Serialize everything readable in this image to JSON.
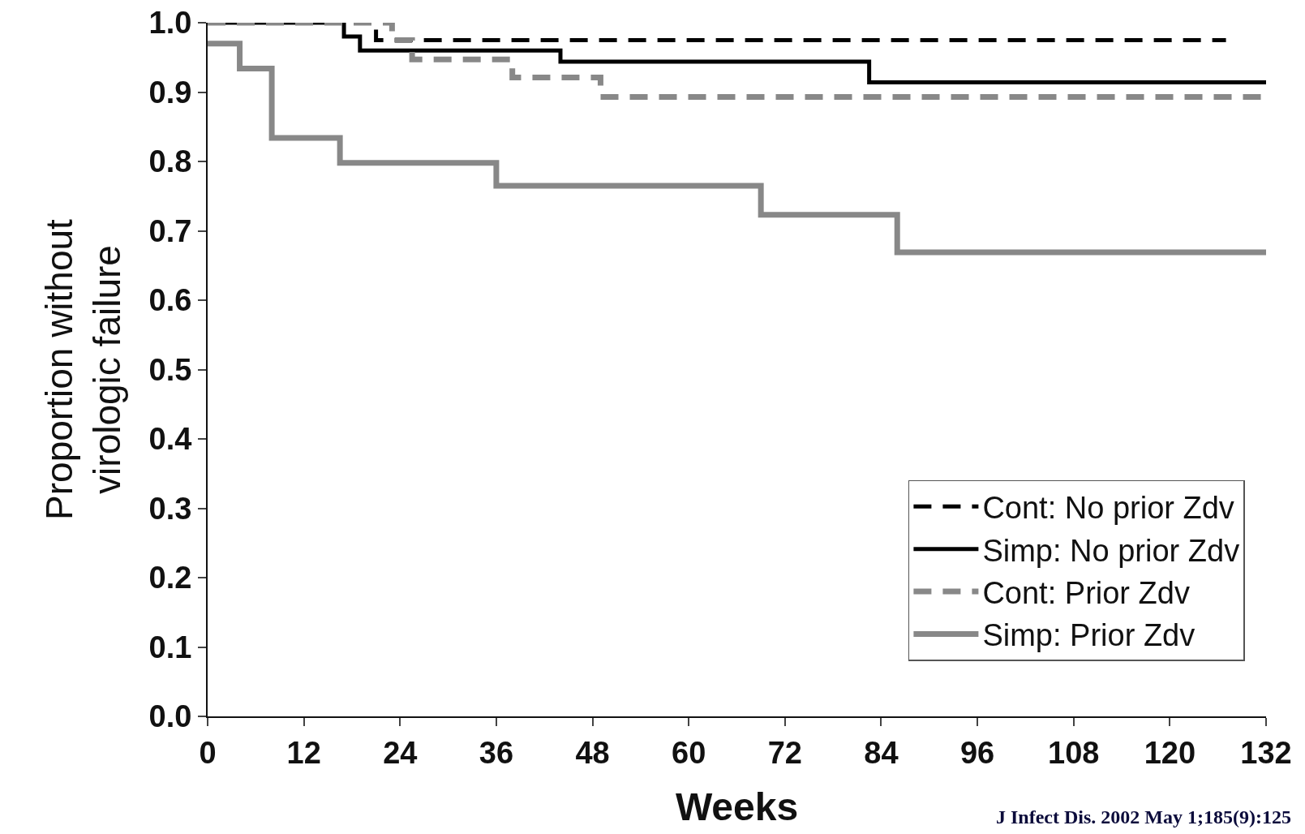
{
  "chart_data": {
    "type": "step",
    "xlabel": "Weeks",
    "ylabel": "Proportion without\nvirologic failure",
    "xlim": [
      0,
      132
    ],
    "xticks": [
      0,
      12,
      24,
      36,
      48,
      60,
      72,
      84,
      96,
      108,
      120,
      132
    ],
    "ylim": [
      0,
      1.0
    ],
    "yticks": [
      {
        "value": 0,
        "label": "0.0"
      },
      0.1,
      0.2,
      0.3,
      0.4,
      0.5,
      0.6,
      0.7,
      0.8,
      0.9,
      {
        "value": 1,
        "label": "1.0"
      }
    ],
    "grid": false,
    "legend": "bottom right",
    "marker": "none",
    "series": [
      {
        "name": "Cont: No prior Zdv",
        "color": "#000000",
        "line_style": "dashed",
        "x": [
          0,
          21,
          127
        ],
        "values": [
          1.0,
          0.975,
          0.975
        ]
      },
      {
        "name": "Simp: No prior Zdv",
        "color": "#000000",
        "line_style": "solid",
        "x": [
          0,
          17,
          19,
          44,
          82.5,
          132
        ],
        "values": [
          1.0,
          0.98,
          0.96,
          0.944,
          0.914,
          0.914
        ]
      },
      {
        "name": "Cont: Prior Zdv",
        "color": "#888888",
        "line_style": "dashed",
        "x": [
          0,
          23,
          25.5,
          38,
          49,
          132
        ],
        "values": [
          1.0,
          0.975,
          0.947,
          0.921,
          0.893,
          0.893
        ]
      },
      {
        "name": "Simp: Prior Zdv",
        "color": "#888888",
        "line_style": "solid",
        "x": [
          0,
          4,
          8,
          16.5,
          36,
          69,
          86,
          132
        ],
        "values": [
          0.97,
          0.934,
          0.834,
          0.798,
          0.765,
          0.723,
          0.669,
          0.669
        ]
      }
    ],
    "annotations": [
      "J Infect Dis. 2002 May 1;185(9):125"
    ]
  }
}
